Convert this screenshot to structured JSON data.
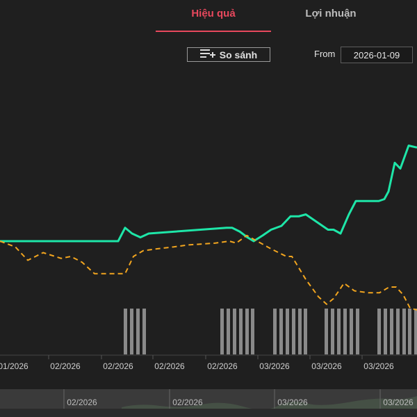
{
  "tabs": [
    {
      "label": "Hiệu quả",
      "active": true
    },
    {
      "label": "Lợi nhuận",
      "active": false
    }
  ],
  "toolbar": {
    "compare_label": "So sánh",
    "compare_icon": "playlist-add-icon",
    "from_label": "From",
    "from_value": "2026-01-09"
  },
  "colors": {
    "accent": "#e8485d",
    "series_main": "#1ee6a8",
    "series_benchmark": "#f2a51f",
    "volume_bars": "#8a8a8a"
  },
  "chart_data": {
    "type": "line",
    "x_tick_labels": [
      "01/2026",
      "02/2026",
      "02/2026",
      "02/2026",
      "02/2026",
      "03/2026",
      "03/2026",
      "03/2026"
    ],
    "navigator_labels": [
      "02/2026",
      "02/2026",
      "03/2026",
      "03/2026"
    ],
    "series": [
      {
        "style": "solid",
        "color": "#1ee6a8",
        "points": [
          [
            0,
            0
          ],
          [
            170,
            0
          ],
          [
            180,
            7
          ],
          [
            190,
            4
          ],
          [
            202,
            2
          ],
          [
            214,
            4
          ],
          [
            326,
            7
          ],
          [
            334,
            7
          ],
          [
            345,
            5
          ],
          [
            356,
            2
          ],
          [
            365,
            0
          ],
          [
            378,
            3
          ],
          [
            390,
            6
          ],
          [
            405,
            8
          ],
          [
            418,
            13
          ],
          [
            430,
            13
          ],
          [
            440,
            14
          ],
          [
            472,
            6
          ],
          [
            480,
            6
          ],
          [
            490,
            4
          ],
          [
            502,
            14
          ],
          [
            512,
            21
          ],
          [
            545,
            21
          ],
          [
            553,
            22
          ],
          [
            559,
            26
          ],
          [
            568,
            41
          ],
          [
            576,
            38
          ],
          [
            588,
            50
          ],
          [
            600,
            49
          ]
        ]
      },
      {
        "style": "dashed",
        "color": "#f2a51f",
        "points": [
          [
            0,
            0
          ],
          [
            22,
            -3
          ],
          [
            40,
            -10
          ],
          [
            62,
            -6
          ],
          [
            88,
            -9
          ],
          [
            102,
            -8
          ],
          [
            118,
            -11
          ],
          [
            136,
            -17
          ],
          [
            180,
            -17
          ],
          [
            192,
            -8
          ],
          [
            206,
            -5
          ],
          [
            226,
            -4
          ],
          [
            250,
            -3
          ],
          [
            270,
            -2
          ],
          [
            310,
            -1
          ],
          [
            330,
            0
          ],
          [
            340,
            -1
          ],
          [
            355,
            3
          ],
          [
            370,
            0
          ],
          [
            390,
            -4
          ],
          [
            412,
            -8
          ],
          [
            420,
            -8
          ],
          [
            440,
            -20
          ],
          [
            458,
            -29
          ],
          [
            470,
            -33
          ],
          [
            480,
            -30
          ],
          [
            495,
            -22
          ],
          [
            510,
            -26
          ],
          [
            530,
            -27
          ],
          [
            546,
            -27
          ],
          [
            560,
            -24
          ],
          [
            570,
            -24
          ],
          [
            580,
            -28
          ],
          [
            590,
            -35
          ],
          [
            600,
            -36
          ]
        ]
      }
    ],
    "volume_bars": {
      "x": [
        181,
        190,
        199,
        208,
        320,
        329,
        338,
        347,
        356,
        364,
        396,
        405,
        414,
        423,
        432,
        440,
        470,
        479,
        488,
        497,
        506,
        515,
        546,
        555,
        564,
        573,
        582,
        590,
        599
      ],
      "values": [
        1,
        1,
        1,
        1,
        1,
        1,
        1,
        1,
        1,
        1,
        1,
        1,
        1,
        1,
        1,
        1,
        1,
        1,
        1,
        1,
        1,
        1,
        1,
        1,
        1,
        1,
        1,
        1,
        1
      ]
    }
  }
}
